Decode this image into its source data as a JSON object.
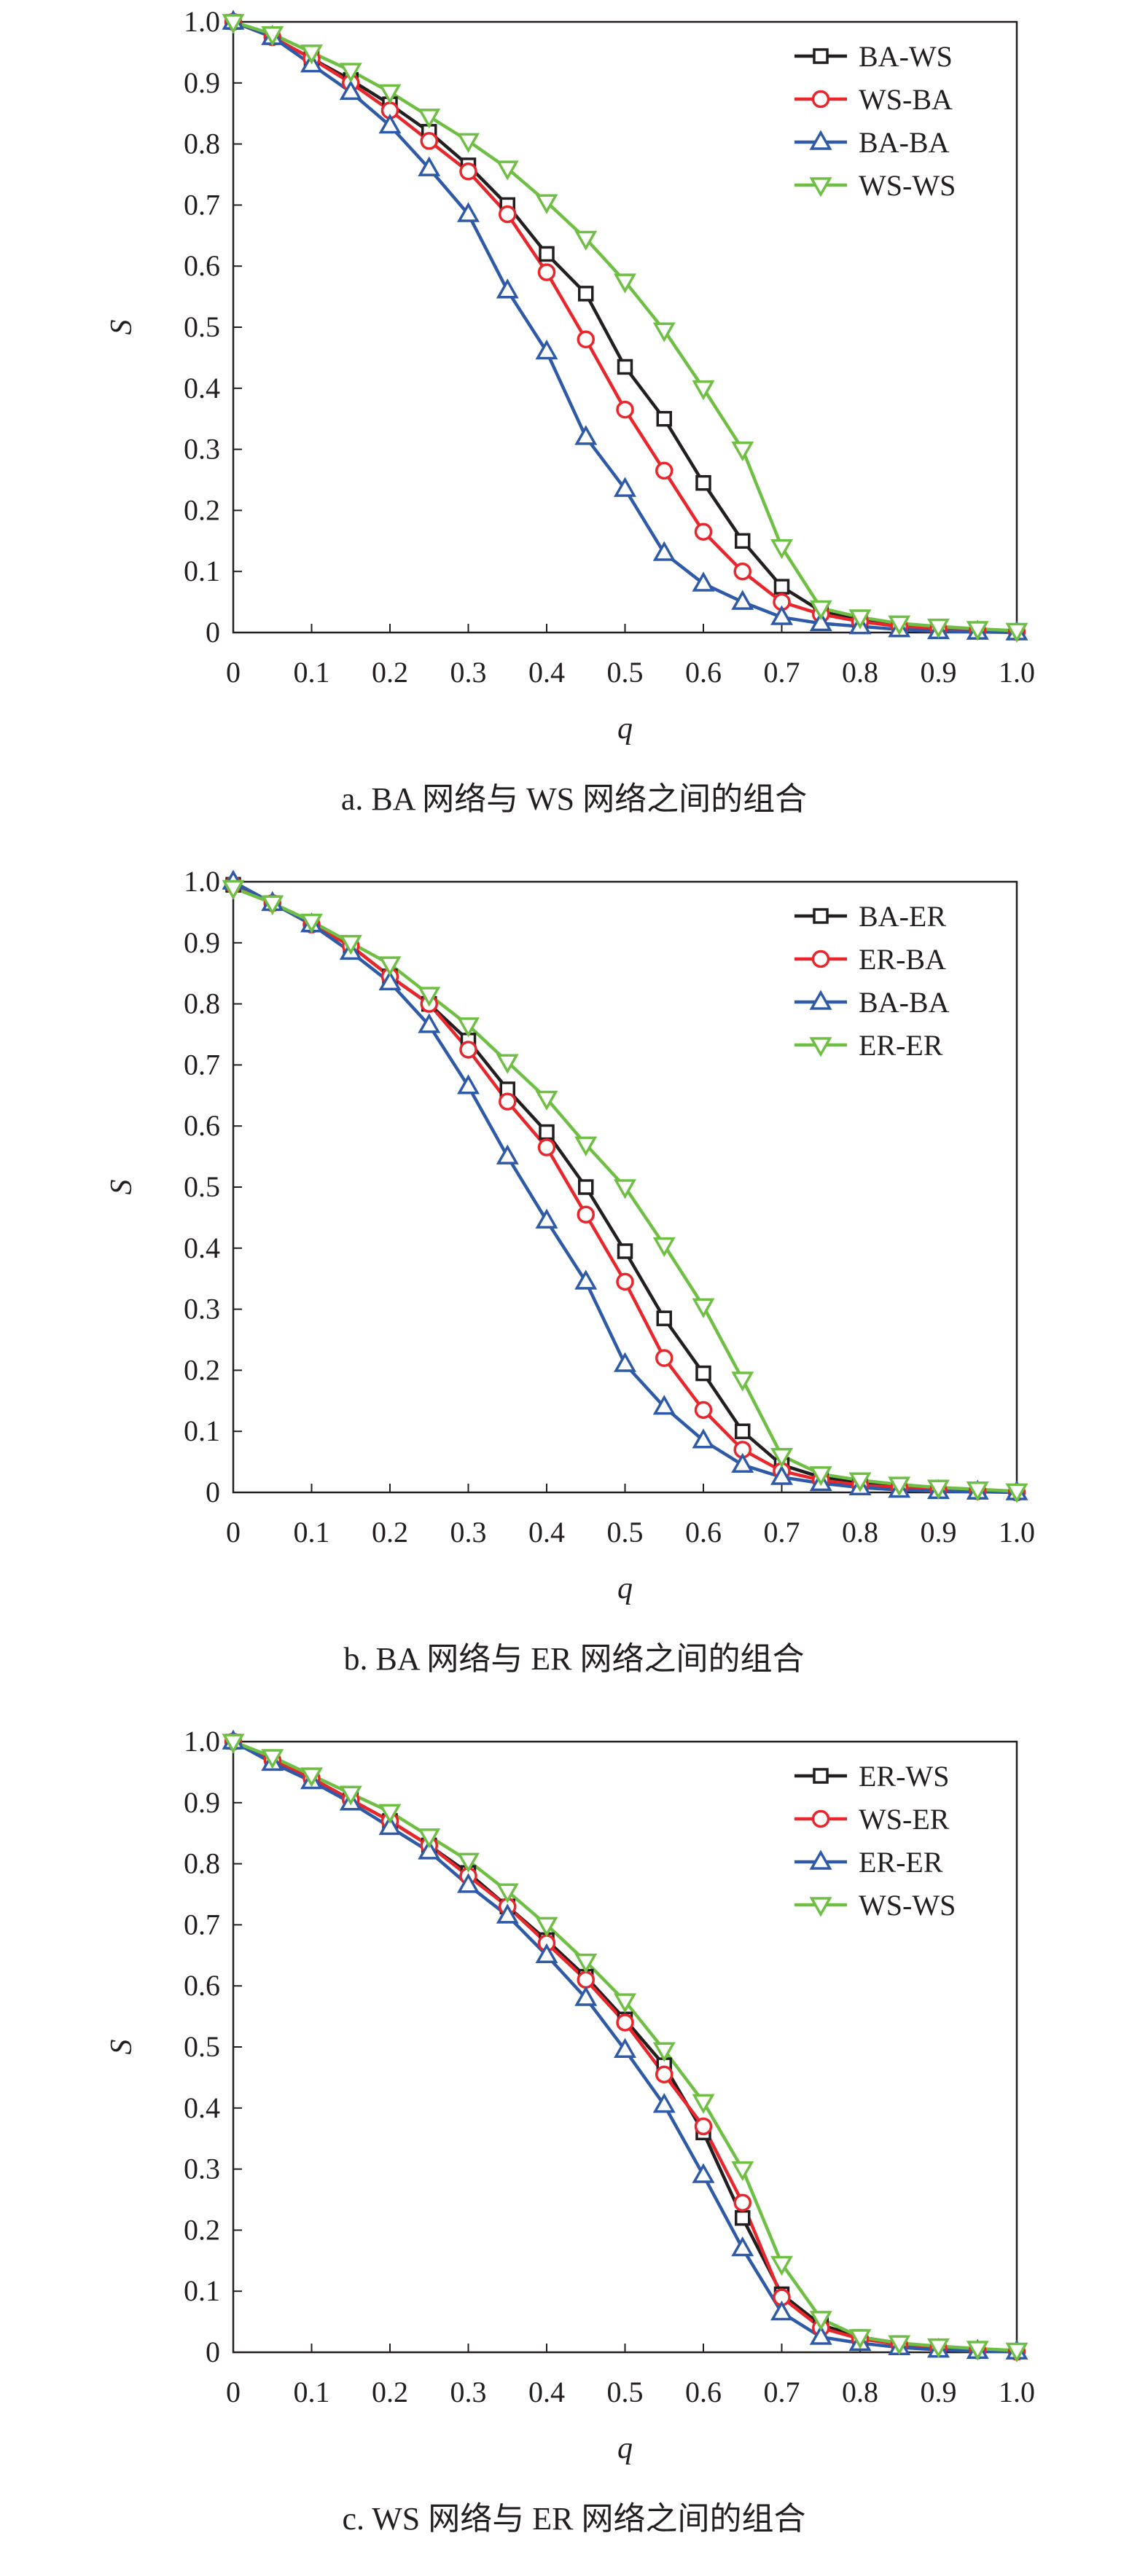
{
  "chart_data": [
    {
      "type": "line",
      "caption": "a. BA 网络与 WS 网络之间的组合",
      "xlabel": "q",
      "ylabel": "S",
      "xlim": [
        0,
        1.0
      ],
      "ylim": [
        0,
        1.0
      ],
      "x_ticks": [
        "0",
        "0.1",
        "0.2",
        "0.3",
        "0.4",
        "0.5",
        "0.6",
        "0.7",
        "0.8",
        "0.9",
        "1.0"
      ],
      "y_ticks": [
        "0",
        "0.1",
        "0.2",
        "0.3",
        "0.4",
        "0.5",
        "0.6",
        "0.7",
        "0.8",
        "0.9",
        "1.0"
      ],
      "x": [
        0,
        0.05,
        0.1,
        0.15,
        0.2,
        0.25,
        0.3,
        0.35,
        0.4,
        0.45,
        0.5,
        0.55,
        0.6,
        0.65,
        0.7,
        0.75,
        0.8,
        0.85,
        0.9,
        0.95,
        1.0
      ],
      "legend_position": "top-right",
      "series": [
        {
          "name": "BA-WS",
          "marker": "square",
          "color": "#231f20",
          "values": [
            1.0,
            0.975,
            0.94,
            0.905,
            0.865,
            0.82,
            0.765,
            0.7,
            0.62,
            0.555,
            0.435,
            0.35,
            0.245,
            0.15,
            0.075,
            0.035,
            0.02,
            0.012,
            0.007,
            0.004,
            0.002
          ]
        },
        {
          "name": "WS-BA",
          "marker": "circle",
          "color": "#e8262b",
          "values": [
            1.0,
            0.975,
            0.94,
            0.9,
            0.855,
            0.805,
            0.755,
            0.685,
            0.59,
            0.48,
            0.365,
            0.265,
            0.165,
            0.1,
            0.05,
            0.03,
            0.018,
            0.01,
            0.006,
            0.003,
            0.001
          ]
        },
        {
          "name": "BA-BA",
          "marker": "triangle-up",
          "color": "#2e5aa8",
          "values": [
            1.0,
            0.975,
            0.93,
            0.885,
            0.83,
            0.76,
            0.685,
            0.56,
            0.46,
            0.32,
            0.235,
            0.13,
            0.08,
            0.05,
            0.025,
            0.015,
            0.01,
            0.005,
            0.002,
            0.001,
            0.0
          ]
        },
        {
          "name": "WS-WS",
          "marker": "triangle-down",
          "color": "#6fbf44",
          "values": [
            1.0,
            0.98,
            0.95,
            0.92,
            0.885,
            0.845,
            0.805,
            0.76,
            0.705,
            0.645,
            0.575,
            0.495,
            0.4,
            0.3,
            0.14,
            0.04,
            0.025,
            0.015,
            0.01,
            0.006,
            0.003
          ]
        }
      ]
    },
    {
      "type": "line",
      "caption": "b. BA 网络与 ER 网络之间的组合",
      "xlabel": "q",
      "ylabel": "S",
      "xlim": [
        0,
        1.0
      ],
      "ylim": [
        0,
        1.0
      ],
      "x_ticks": [
        "0",
        "0.1",
        "0.2",
        "0.3",
        "0.4",
        "0.5",
        "0.6",
        "0.7",
        "0.8",
        "0.9",
        "1.0"
      ],
      "y_ticks": [
        "0",
        "0.1",
        "0.2",
        "0.3",
        "0.4",
        "0.5",
        "0.6",
        "0.7",
        "0.8",
        "0.9",
        "1.0"
      ],
      "x": [
        0,
        0.05,
        0.1,
        0.15,
        0.2,
        0.25,
        0.3,
        0.35,
        0.4,
        0.45,
        0.5,
        0.55,
        0.6,
        0.65,
        0.7,
        0.75,
        0.8,
        0.85,
        0.9,
        0.95,
        1.0
      ],
      "legend_position": "top-right",
      "series": [
        {
          "name": "BA-ER",
          "marker": "square",
          "color": "#231f20",
          "values": [
            0.995,
            0.965,
            0.93,
            0.895,
            0.845,
            0.8,
            0.74,
            0.66,
            0.59,
            0.5,
            0.395,
            0.285,
            0.195,
            0.1,
            0.045,
            0.025,
            0.015,
            0.01,
            0.006,
            0.003,
            0.001
          ]
        },
        {
          "name": "ER-BA",
          "marker": "circle",
          "color": "#e8262b",
          "values": [
            0.995,
            0.965,
            0.93,
            0.895,
            0.845,
            0.8,
            0.725,
            0.64,
            0.565,
            0.455,
            0.345,
            0.22,
            0.135,
            0.07,
            0.035,
            0.02,
            0.012,
            0.008,
            0.004,
            0.002,
            0.0
          ]
        },
        {
          "name": "BA-BA",
          "marker": "triangle-up",
          "color": "#2e5aa8",
          "values": [
            1.0,
            0.965,
            0.93,
            0.885,
            0.835,
            0.765,
            0.665,
            0.55,
            0.445,
            0.345,
            0.21,
            0.14,
            0.085,
            0.045,
            0.025,
            0.015,
            0.008,
            0.004,
            0.002,
            0.001,
            0.0
          ]
        },
        {
          "name": "ER-ER",
          "marker": "triangle-down",
          "color": "#6fbf44",
          "values": [
            0.99,
            0.965,
            0.935,
            0.9,
            0.865,
            0.815,
            0.765,
            0.705,
            0.645,
            0.57,
            0.5,
            0.405,
            0.305,
            0.185,
            0.06,
            0.03,
            0.02,
            0.013,
            0.008,
            0.005,
            0.002
          ]
        }
      ]
    },
    {
      "type": "line",
      "caption": "c. WS 网络与 ER 网络之间的组合",
      "xlabel": "q",
      "ylabel": "S",
      "xlim": [
        0,
        1.0
      ],
      "ylim": [
        0,
        1.0
      ],
      "x_ticks": [
        "0",
        "0.1",
        "0.2",
        "0.3",
        "0.4",
        "0.5",
        "0.6",
        "0.7",
        "0.8",
        "0.9",
        "1.0"
      ],
      "y_ticks": [
        "0",
        "0.1",
        "0.2",
        "0.3",
        "0.4",
        "0.5",
        "0.6",
        "0.7",
        "0.8",
        "0.9",
        "1.0"
      ],
      "x": [
        0,
        0.05,
        0.1,
        0.15,
        0.2,
        0.25,
        0.3,
        0.35,
        0.4,
        0.45,
        0.5,
        0.55,
        0.6,
        0.65,
        0.7,
        0.75,
        0.8,
        0.85,
        0.9,
        0.95,
        1.0
      ],
      "legend_position": "top-right",
      "series": [
        {
          "name": "ER-WS",
          "marker": "square",
          "color": "#231f20",
          "values": [
            1.0,
            0.97,
            0.94,
            0.905,
            0.87,
            0.83,
            0.785,
            0.73,
            0.675,
            0.615,
            0.545,
            0.47,
            0.36,
            0.22,
            0.095,
            0.045,
            0.025,
            0.015,
            0.008,
            0.004,
            0.002
          ]
        },
        {
          "name": "WS-ER",
          "marker": "circle",
          "color": "#e8262b",
          "values": [
            1.0,
            0.97,
            0.94,
            0.905,
            0.87,
            0.83,
            0.78,
            0.73,
            0.67,
            0.61,
            0.54,
            0.455,
            0.37,
            0.245,
            0.09,
            0.04,
            0.022,
            0.013,
            0.007,
            0.003,
            0.001
          ]
        },
        {
          "name": "ER-ER",
          "marker": "triangle-up",
          "color": "#2e5aa8",
          "values": [
            1.0,
            0.965,
            0.935,
            0.9,
            0.86,
            0.82,
            0.765,
            0.715,
            0.65,
            0.58,
            0.495,
            0.405,
            0.29,
            0.17,
            0.065,
            0.025,
            0.015,
            0.008,
            0.004,
            0.002,
            0.001
          ]
        },
        {
          "name": "WS-WS",
          "marker": "triangle-down",
          "color": "#6fbf44",
          "values": [
            1.0,
            0.975,
            0.945,
            0.915,
            0.885,
            0.845,
            0.805,
            0.755,
            0.7,
            0.64,
            0.575,
            0.495,
            0.41,
            0.3,
            0.145,
            0.055,
            0.025,
            0.015,
            0.01,
            0.006,
            0.003
          ]
        }
      ]
    }
  ]
}
